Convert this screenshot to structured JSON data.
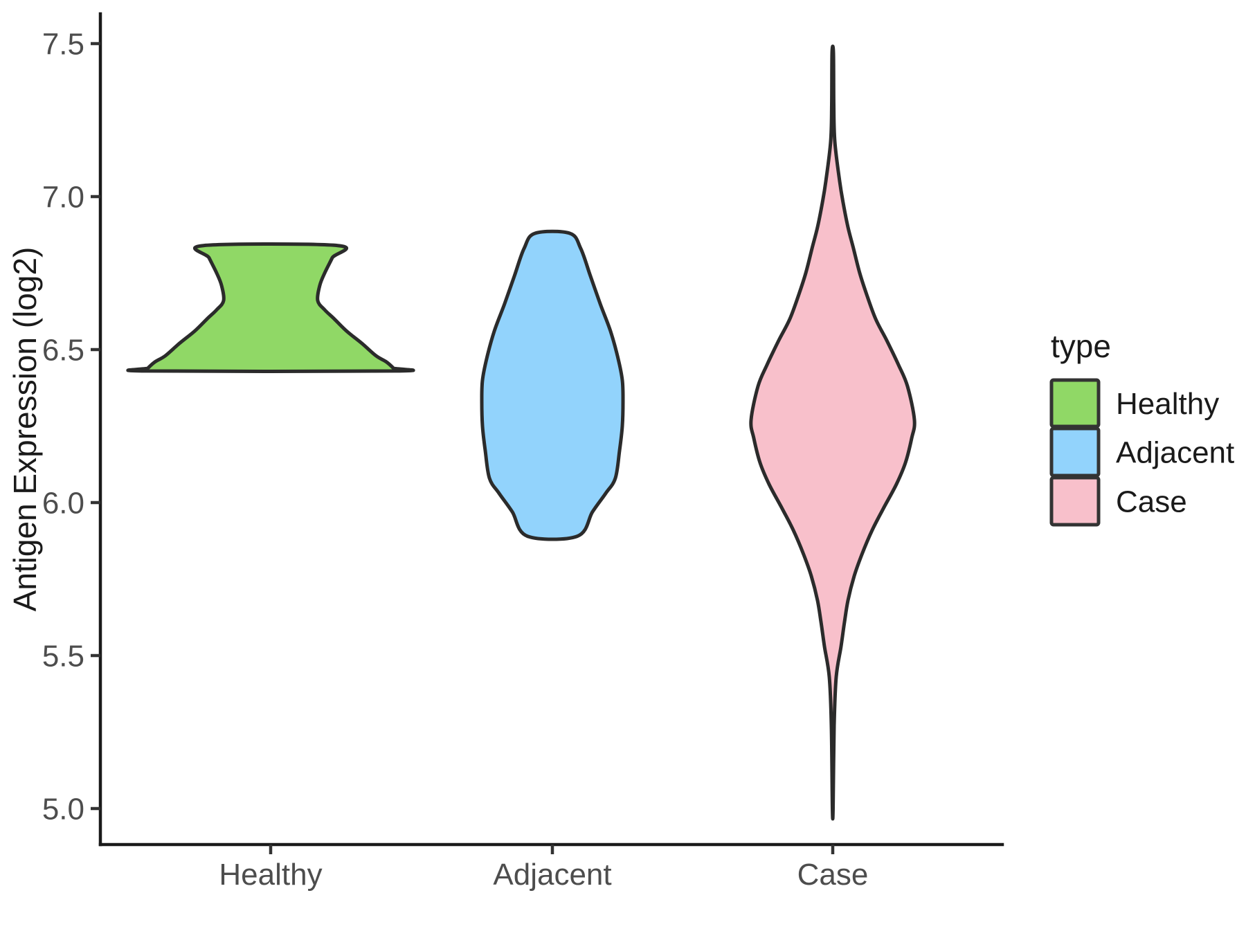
{
  "chart_data": {
    "type": "violin",
    "title": "",
    "xlabel": "",
    "ylabel": "Antigen Expression (log2)",
    "categories": [
      "Healthy",
      "Adjacent",
      "Case"
    ],
    "y_tick_labels": [
      "5.0",
      "5.5",
      "6.0",
      "6.5",
      "7.0",
      "7.5"
    ],
    "y_tick_values": [
      5.0,
      5.5,
      6.0,
      6.5,
      7.0,
      7.5
    ],
    "ylim_shown": [
      5.0,
      7.5
    ],
    "grid": false,
    "legend": {
      "title": "type",
      "position": "right",
      "entries": [
        {
          "label": "Healthy",
          "color": "#90D866"
        },
        {
          "label": "Adjacent",
          "color": "#92D3FC"
        },
        {
          "label": "Case",
          "color": "#F8C0CB"
        }
      ]
    },
    "style": {
      "outline_color": "#2B2B2B",
      "axis_color": "#1A1A1A",
      "tick_label_color": "#4D4D4D",
      "text_color": "#1A1A1A",
      "background": "#FFFFFF"
    },
    "violins": [
      {
        "name": "Healthy",
        "fill": "#90D866",
        "value_min": 6.43,
        "value_max": 6.84,
        "truncated_flat_ends": true,
        "profile": [
          [
            6.84,
            97
          ],
          [
            6.8,
            89
          ],
          [
            6.75,
            78
          ],
          [
            6.71,
            71
          ],
          [
            6.66,
            68
          ],
          [
            6.63,
            78
          ],
          [
            6.6,
            92
          ],
          [
            6.56,
            110
          ],
          [
            6.52,
            132
          ],
          [
            6.48,
            152
          ],
          [
            6.46,
            167
          ],
          [
            6.44,
            177
          ],
          [
            6.43,
            180
          ]
        ]
      },
      {
        "name": "Adjacent",
        "fill": "#92D3FC",
        "value_min": 5.89,
        "value_max": 6.88,
        "truncated_flat_ends": true,
        "profile": [
          [
            6.88,
            25
          ],
          [
            6.83,
            41
          ],
          [
            6.74,
            55
          ],
          [
            6.65,
            69
          ],
          [
            6.56,
            84
          ],
          [
            6.47,
            95
          ],
          [
            6.4,
            101
          ],
          [
            6.33,
            102
          ],
          [
            6.25,
            101
          ],
          [
            6.17,
            97
          ],
          [
            6.08,
            91
          ],
          [
            6.03,
            77
          ],
          [
            5.97,
            58
          ],
          [
            5.89,
            36
          ]
        ]
      },
      {
        "name": "Case",
        "fill": "#F8C0CB",
        "value_min": 5.0,
        "value_max": 7.47,
        "truncated_flat_ends": false,
        "profile": [
          [
            7.47,
            1
          ],
          [
            7.3,
            1.5
          ],
          [
            7.18,
            3
          ],
          [
            7.05,
            10
          ],
          [
            6.98,
            15
          ],
          [
            6.9,
            22
          ],
          [
            6.83,
            30
          ],
          [
            6.75,
            39
          ],
          [
            6.68,
            49
          ],
          [
            6.6,
            62
          ],
          [
            6.53,
            78
          ],
          [
            6.45,
            95
          ],
          [
            6.38,
            108
          ],
          [
            6.27,
            118
          ],
          [
            6.21,
            114
          ],
          [
            6.13,
            105
          ],
          [
            6.06,
            92
          ],
          [
            5.98,
            73
          ],
          [
            5.91,
            57
          ],
          [
            5.83,
            42
          ],
          [
            5.76,
            31
          ],
          [
            5.68,
            22
          ],
          [
            5.61,
            17
          ],
          [
            5.53,
            12
          ],
          [
            5.43,
            5
          ],
          [
            5.27,
            2
          ],
          [
            5.0,
            0.5
          ]
        ]
      }
    ]
  }
}
